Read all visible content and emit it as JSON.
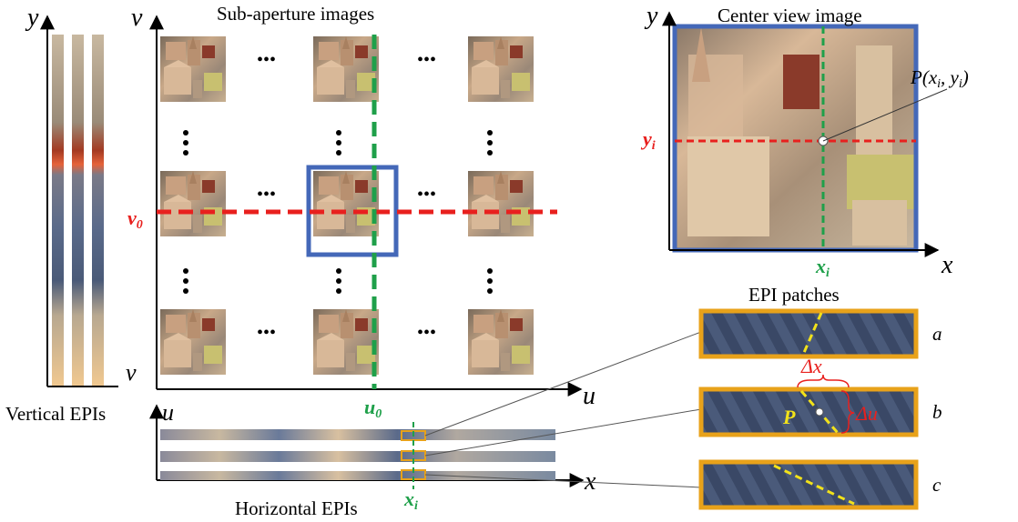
{
  "titles": {
    "sub_aperture": "Sub-aperture images",
    "center_view": "Center view image",
    "epi_patches": "EPI patches",
    "horizontal_epis": "Horizontal EPIs",
    "vertical_epis": "Vertical EPIs"
  },
  "axes": {
    "y_vertical_epi": "y",
    "v_vertical_epi": "v",
    "v_grid": "v",
    "u_grid": "u",
    "u_horizontal_epi": "u",
    "x_horizontal_epi": "x",
    "y_center": "y",
    "x_center": "x"
  },
  "markers": {
    "v0": "v",
    "v0_sub": "0",
    "u0": "u",
    "u0_sub": "0",
    "xi_center": "x",
    "xi_center_sub": "i",
    "yi": "y",
    "yi_sub": "i",
    "xi_epi": "x",
    "xi_epi_sub": "i",
    "point_label": "P(x",
    "point_label_sub1": "i",
    "point_label_mid": ", y",
    "point_label_sub2": "i",
    "point_label_end": ")"
  },
  "ellipsis": {
    "horizontal": "•••",
    "vertical": "•••"
  },
  "patches": [
    {
      "label": "a"
    },
    {
      "label": "b"
    },
    {
      "label": "c"
    }
  ],
  "patch_annotations": {
    "delta_x": "Δx",
    "delta_u": "Δu",
    "p": "P"
  },
  "colors": {
    "red": "#e8201e",
    "green": "#1fa04a",
    "blue": "#4468b8",
    "orange": "#e8a21a",
    "yellow": "#f2e21a",
    "patch_bg": "#4a5a7a"
  }
}
